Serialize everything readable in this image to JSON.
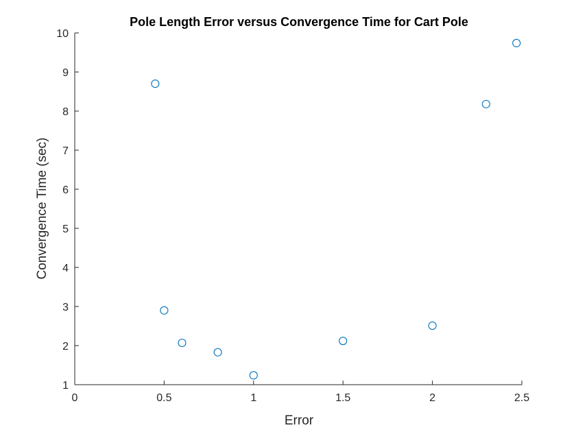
{
  "chart_data": {
    "type": "scatter",
    "title": "Pole Length Error versus Convergence Time for Cart Pole",
    "xlabel": "Error",
    "ylabel": "Convergence Time (sec)",
    "xlim": [
      0,
      2.5
    ],
    "ylim": [
      1,
      10
    ],
    "xticks": [
      "0",
      "0.5",
      "1",
      "1.5",
      "2",
      "2.5"
    ],
    "yticks": [
      "1",
      "2",
      "3",
      "4",
      "5",
      "6",
      "7",
      "8",
      "9",
      "10"
    ],
    "grid": false,
    "legend": "none",
    "marker": "open-circle",
    "marker_color": "#0072BD",
    "axis_color": "#262626",
    "points": [
      {
        "x": 0.45,
        "y": 8.7
      },
      {
        "x": 0.5,
        "y": 2.9
      },
      {
        "x": 0.6,
        "y": 2.07
      },
      {
        "x": 0.8,
        "y": 1.83
      },
      {
        "x": 1.0,
        "y": 1.24
      },
      {
        "x": 1.5,
        "y": 2.12
      },
      {
        "x": 2.0,
        "y": 2.51
      },
      {
        "x": 2.3,
        "y": 8.18
      },
      {
        "x": 2.47,
        "y": 9.74
      }
    ]
  }
}
